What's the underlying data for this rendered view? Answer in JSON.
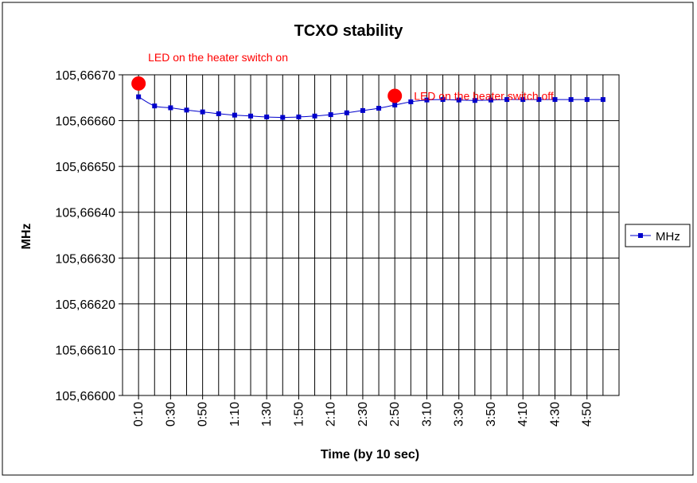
{
  "chart_data": {
    "type": "line",
    "title": "TCXO stability",
    "xlabel": "Time (by 10 sec)",
    "ylabel": "MHz",
    "x_tick_labels": [
      "0:10",
      "0:30",
      "0:50",
      "1:10",
      "1:30",
      "1:50",
      "2:10",
      "2:30",
      "2:50",
      "3:10",
      "3:30",
      "3:50",
      "4:10",
      "4:30",
      "4:50"
    ],
    "x_categories": [
      "0:10",
      "0:20",
      "0:30",
      "0:40",
      "0:50",
      "1:00",
      "1:10",
      "1:20",
      "1:30",
      "1:40",
      "1:50",
      "2:00",
      "2:10",
      "2:20",
      "2:30",
      "2:40",
      "2:50",
      "3:00",
      "3:10",
      "3:20",
      "3:30",
      "3:40",
      "3:50",
      "4:00",
      "4:10",
      "4:20",
      "4:30",
      "4:40",
      "4:50",
      "5:00"
    ],
    "y_tick_labels": [
      "105,66600",
      "105,66610",
      "105,66620",
      "105,66630",
      "105,66640",
      "105,66650",
      "105,66660",
      "105,66670"
    ],
    "ylim": [
      105.666,
      105.6667
    ],
    "grid": true,
    "legend_position": "right",
    "series": [
      {
        "name": "MHz",
        "color": "#0000cc",
        "values": [
          105.666652,
          105.666632,
          105.666628,
          105.666623,
          105.666619,
          105.666615,
          105.666612,
          105.66661,
          105.666608,
          105.666607,
          105.666608,
          105.66661,
          105.666613,
          105.666617,
          105.666622,
          105.666627,
          105.666634,
          105.666641,
          105.666645,
          105.666646,
          105.666645,
          105.666644,
          105.666645,
          105.666646,
          105.666646,
          105.666646,
          105.666646,
          105.666646,
          105.666646,
          105.666646
        ]
      }
    ],
    "annotations": [
      {
        "text": "LED on the heater switch on",
        "x_index": 0,
        "y": 105.666681,
        "color": "#ff0000"
      },
      {
        "text": "LED on the heater switch off",
        "x_index": 16,
        "y": 105.666654,
        "color": "#ff0000"
      }
    ]
  }
}
